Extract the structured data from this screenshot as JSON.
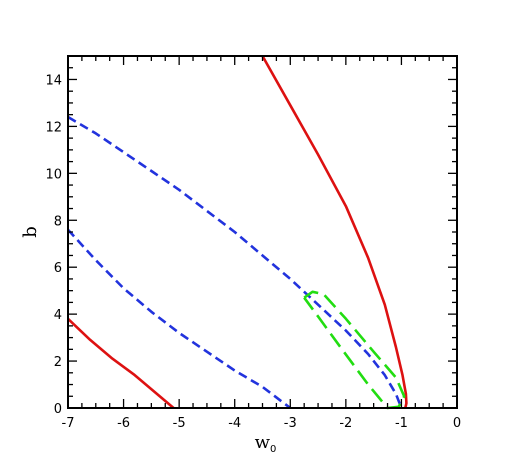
{
  "chart_data": {
    "type": "line",
    "title": "",
    "xlabel": "w",
    "xlabel_subscript": "0",
    "ylabel": "b",
    "xlim": [
      -7,
      0
    ],
    "ylim": [
      0,
      15
    ],
    "x_ticks": [
      -7,
      -6,
      -5,
      -4,
      -3,
      -2,
      -1,
      0
    ],
    "y_ticks": [
      0,
      2,
      4,
      6,
      8,
      10,
      12,
      14
    ],
    "x_tick_labels": [
      "-7",
      "-6",
      "-5",
      "-4",
      "-3",
      "-2",
      "-1",
      "0"
    ],
    "y_tick_labels": [
      "0",
      "2",
      "4",
      "6",
      "8",
      "10",
      "12",
      "14"
    ],
    "grid": false,
    "series": [
      {
        "color": "#dd1111",
        "dash": "solid",
        "points": [
          [
            -3.5,
            15.0
          ],
          [
            -3.0,
            12.9
          ],
          [
            -2.5,
            10.8
          ],
          [
            -2.0,
            8.6
          ],
          [
            -1.6,
            6.4
          ],
          [
            -1.3,
            4.4
          ],
          [
            -1.1,
            2.6
          ],
          [
            -0.98,
            1.4
          ],
          [
            -0.92,
            0.6
          ],
          [
            -0.91,
            0.2
          ],
          [
            -0.93,
            0.0
          ]
        ]
      },
      {
        "color": "#dd1111",
        "dash": "solid",
        "points": [
          [
            -7.0,
            3.8
          ],
          [
            -6.6,
            2.9
          ],
          [
            -6.2,
            2.1
          ],
          [
            -5.8,
            1.4
          ],
          [
            -5.4,
            0.6
          ],
          [
            -5.1,
            0.0
          ]
        ]
      },
      {
        "color": "#2233dd",
        "dash": "dashed",
        "points": [
          [
            -7.0,
            12.4
          ],
          [
            -6.5,
            11.7
          ],
          [
            -6.0,
            10.9
          ],
          [
            -5.5,
            10.1
          ],
          [
            -5.0,
            9.3
          ],
          [
            -4.5,
            8.4
          ],
          [
            -4.0,
            7.5
          ],
          [
            -3.5,
            6.5
          ],
          [
            -3.0,
            5.5
          ],
          [
            -2.5,
            4.4
          ],
          [
            -2.0,
            3.3
          ],
          [
            -1.6,
            2.3
          ],
          [
            -1.3,
            1.4
          ],
          [
            -1.1,
            0.6
          ],
          [
            -1.0,
            0.0
          ]
        ]
      },
      {
        "color": "#2233dd",
        "dash": "dashed",
        "points": [
          [
            -7.0,
            7.6
          ],
          [
            -6.5,
            6.3
          ],
          [
            -6.0,
            5.1
          ],
          [
            -5.5,
            4.1
          ],
          [
            -5.0,
            3.2
          ],
          [
            -4.5,
            2.4
          ],
          [
            -4.0,
            1.6
          ],
          [
            -3.5,
            0.9
          ],
          [
            -3.0,
            0.0
          ]
        ]
      },
      {
        "color": "#22dd11",
        "dash": "longdash",
        "points": [
          [
            -2.75,
            4.7
          ],
          [
            -2.6,
            4.95
          ],
          [
            -2.4,
            4.85
          ],
          [
            -2.0,
            3.8
          ],
          [
            -1.5,
            2.4
          ],
          [
            -1.1,
            1.3
          ],
          [
            -0.95,
            0.5
          ],
          [
            -1.05,
            0.05
          ],
          [
            -1.25,
            0.0
          ],
          [
            -1.6,
            1.0
          ],
          [
            -2.1,
            2.6
          ],
          [
            -2.5,
            3.9
          ],
          [
            -2.75,
            4.7
          ]
        ]
      }
    ]
  }
}
